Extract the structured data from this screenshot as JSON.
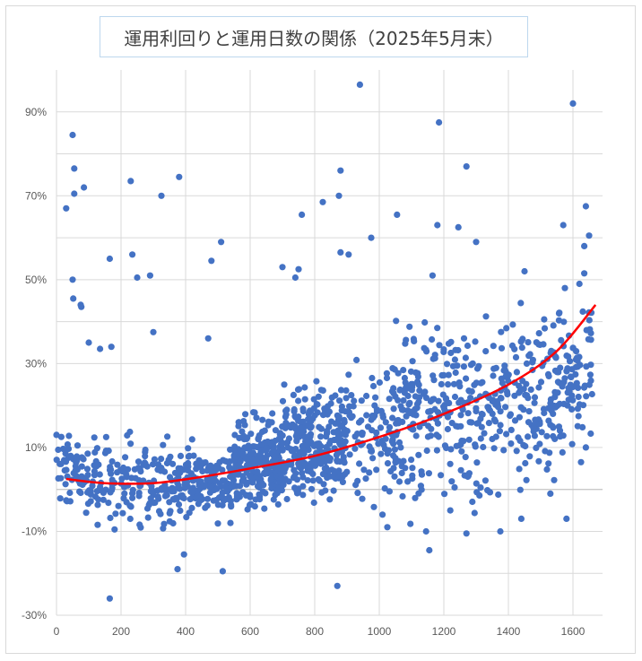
{
  "chart_data": {
    "type": "scatter",
    "title": "運用利回りと運用日数の関係（2025年5月末）",
    "xlabel": "",
    "ylabel": "",
    "xlim": [
      0,
      1700
    ],
    "ylim": [
      -0.3,
      1.0
    ],
    "x_ticks": [
      0,
      200,
      400,
      600,
      800,
      1000,
      1200,
      1400,
      1600
    ],
    "x_tick_labels": [
      "0",
      "200",
      "400",
      "600",
      "800",
      "1000",
      "1200",
      "1400",
      "1600"
    ],
    "y_ticks": [
      -0.3,
      -0.1,
      0.1,
      0.3,
      0.5,
      0.7,
      0.9
    ],
    "y_tick_labels": [
      "-30%",
      "-10%",
      "10%",
      "30%",
      "50%",
      "70%",
      "90%"
    ],
    "gridlines": true,
    "legend": "none",
    "marker_color": "#4472c4",
    "trend_color": "#ff0000",
    "trendline": {
      "type": "polynomial",
      "points": [
        [
          30,
          0.025
        ],
        [
          150,
          0.015
        ],
        [
          300,
          0.015
        ],
        [
          450,
          0.03
        ],
        [
          600,
          0.05
        ],
        [
          800,
          0.08
        ],
        [
          1000,
          0.125
        ],
        [
          1200,
          0.18
        ],
        [
          1400,
          0.25
        ],
        [
          1550,
          0.33
        ],
        [
          1670,
          0.44
        ]
      ]
    },
    "series": [
      {
        "points": [
          [
            0,
            0.13
          ],
          [
            15,
            0.125
          ],
          [
            30,
            0.67
          ],
          [
            50,
            0.845
          ],
          [
            55,
            0.765
          ],
          [
            55,
            0.705
          ],
          [
            50,
            0.5
          ],
          [
            52,
            0.455
          ],
          [
            75,
            0.44
          ],
          [
            77,
            0.435
          ],
          [
            85,
            0.72
          ],
          [
            100,
            0.35
          ],
          [
            135,
            0.335
          ],
          [
            165,
            0.55
          ],
          [
            170,
            0.34
          ],
          [
            230,
            0.735
          ],
          [
            235,
            0.56
          ],
          [
            250,
            0.505
          ],
          [
            290,
            0.51
          ],
          [
            300,
            0.375
          ],
          [
            325,
            0.7
          ],
          [
            380,
            0.745
          ],
          [
            470,
            0.36
          ],
          [
            480,
            0.545
          ],
          [
            510,
            0.59
          ],
          [
            165,
            -0.26
          ],
          [
            375,
            -0.19
          ],
          [
            395,
            -0.155
          ],
          [
            515,
            -0.195
          ],
          [
            870,
            -0.23
          ],
          [
            940,
            0.965
          ],
          [
            1185,
            0.875
          ],
          [
            1270,
            0.77
          ],
          [
            1600,
            0.92
          ],
          [
            1640,
            0.675
          ],
          [
            1650,
            0.605
          ],
          [
            1570,
            0.63
          ],
          [
            1635,
            0.58
          ],
          [
            1635,
            0.515
          ],
          [
            880,
            0.76
          ],
          [
            875,
            0.7
          ],
          [
            760,
            0.655
          ],
          [
            825,
            0.685
          ],
          [
            700,
            0.53
          ],
          [
            740,
            0.505
          ],
          [
            750,
            0.525
          ],
          [
            880,
            0.565
          ],
          [
            905,
            0.56
          ],
          [
            975,
            0.6
          ],
          [
            1055,
            0.655
          ],
          [
            1180,
            0.63
          ],
          [
            1245,
            0.625
          ],
          [
            1300,
            0.59
          ],
          [
            1165,
            0.51
          ],
          [
            1450,
            0.52
          ],
          [
            1575,
            0.48
          ],
          [
            1620,
            0.49
          ],
          [
            1010,
            -0.06
          ],
          [
            1025,
            -0.09
          ],
          [
            1145,
            -0.1
          ],
          [
            1155,
            -0.145
          ],
          [
            1220,
            -0.05
          ],
          [
            1270,
            -0.105
          ],
          [
            1375,
            -0.1
          ],
          [
            1440,
            -0.07
          ],
          [
            1580,
            -0.07
          ],
          [
            1530,
            -0.01
          ],
          [
            1640,
            0.1
          ],
          [
            1625,
            0.065
          ]
        ]
      }
    ]
  }
}
